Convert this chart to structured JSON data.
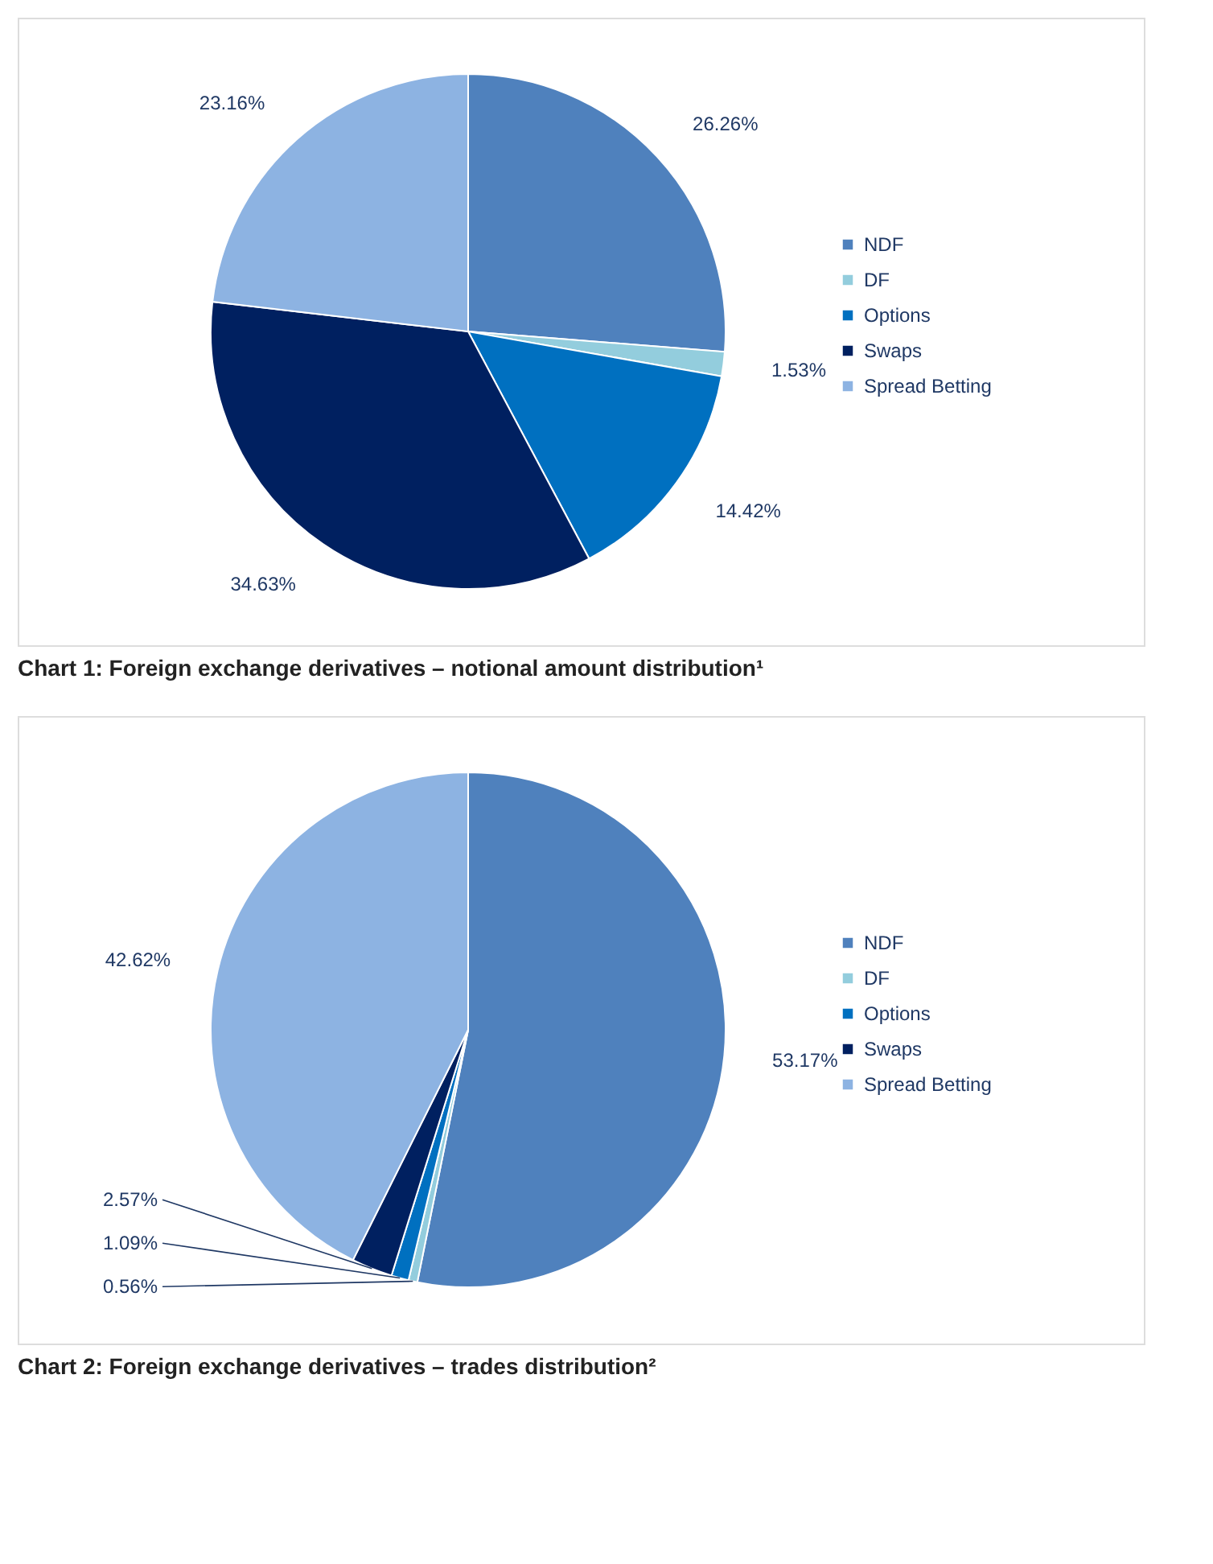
{
  "chart_data": [
    {
      "type": "pie",
      "title": "Chart 1:   Foreign exchange derivatives – notional amount distribution¹",
      "categories": [
        "NDF",
        "DF",
        "Options",
        "Swaps",
        "Spread Betting"
      ],
      "values": [
        26.26,
        1.53,
        14.42,
        34.63,
        23.16
      ],
      "value_labels": [
        "26.26%",
        "1.53%",
        "14.42%",
        "34.63%",
        "23.16%"
      ],
      "colors": [
        "#4f81bd",
        "#93cddd",
        "#0070c0",
        "#002060",
        "#8db3e2"
      ],
      "legend": "right"
    },
    {
      "type": "pie",
      "title": "Chart 2:   Foreign exchange derivatives – trades distribution²",
      "categories": [
        "NDF",
        "DF",
        "Options",
        "Swaps",
        "Spread Betting"
      ],
      "values": [
        53.17,
        0.56,
        1.09,
        2.57,
        42.62
      ],
      "value_labels": [
        "53.17%",
        "0.56%",
        "1.09%",
        "2.57%",
        "42.62%"
      ],
      "colors": [
        "#4f81bd",
        "#93cddd",
        "#0070c0",
        "#002060",
        "#8db3e2"
      ],
      "legend": "right"
    }
  ]
}
